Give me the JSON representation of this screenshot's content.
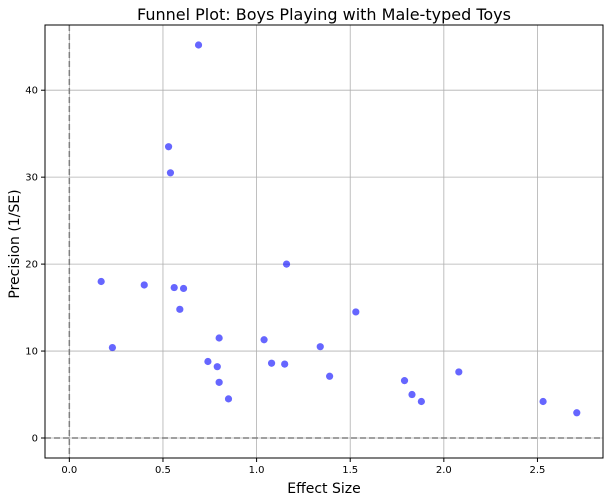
{
  "chart_data": {
    "type": "scatter",
    "title": "Funnel Plot: Boys Playing with Male-typed Toys",
    "xlabel": "Effect Size",
    "ylabel": "Precision (1/SE)",
    "xlim": [
      -0.13,
      2.85
    ],
    "ylim": [
      -2.3,
      47.5
    ],
    "xticks": [
      0.0,
      0.5,
      1.0,
      1.5,
      2.0,
      2.5
    ],
    "xtick_labels": [
      "0.0",
      "0.5",
      "1.0",
      "1.5",
      "2.0",
      "2.5"
    ],
    "yticks": [
      0,
      10,
      20,
      30,
      40
    ],
    "ytick_labels": [
      "0",
      "10",
      "20",
      "30",
      "40"
    ],
    "grid": true,
    "reference_lines": {
      "x": 0,
      "y": 0,
      "style": "dashed",
      "color": "#808080"
    },
    "point_color": "#0000ff",
    "point_alpha": 0.6,
    "points": [
      {
        "x": 0.69,
        "y": 45.2
      },
      {
        "x": 0.53,
        "y": 33.5
      },
      {
        "x": 0.54,
        "y": 30.5
      },
      {
        "x": 0.17,
        "y": 18.0
      },
      {
        "x": 0.4,
        "y": 17.6
      },
      {
        "x": 0.56,
        "y": 17.3
      },
      {
        "x": 0.61,
        "y": 17.2
      },
      {
        "x": 1.16,
        "y": 20.0
      },
      {
        "x": 0.59,
        "y": 14.8
      },
      {
        "x": 1.53,
        "y": 14.5
      },
      {
        "x": 0.8,
        "y": 11.5
      },
      {
        "x": 1.04,
        "y": 11.3
      },
      {
        "x": 0.23,
        "y": 10.4
      },
      {
        "x": 1.34,
        "y": 10.5
      },
      {
        "x": 0.74,
        "y": 8.8
      },
      {
        "x": 0.79,
        "y": 8.2
      },
      {
        "x": 1.08,
        "y": 8.6
      },
      {
        "x": 1.15,
        "y": 8.5
      },
      {
        "x": 1.39,
        "y": 7.1
      },
      {
        "x": 2.08,
        "y": 7.6
      },
      {
        "x": 0.8,
        "y": 6.4
      },
      {
        "x": 1.79,
        "y": 6.6
      },
      {
        "x": 1.83,
        "y": 5.0
      },
      {
        "x": 0.85,
        "y": 4.5
      },
      {
        "x": 1.88,
        "y": 4.2
      },
      {
        "x": 2.53,
        "y": 4.2
      },
      {
        "x": 2.71,
        "y": 2.9
      }
    ]
  }
}
